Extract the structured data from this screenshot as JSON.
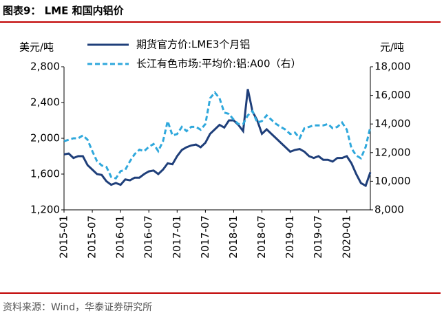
{
  "header": {
    "title": "图表9： LME 和国内铝价"
  },
  "footer": {
    "source": "资料来源：Wind，华泰证券研究所"
  },
  "chart_data": {
    "type": "line",
    "y_label": "美元/吨",
    "y2_label": "元/吨",
    "x": [
      "2015-01",
      "2015-02",
      "2015-03",
      "2015-04",
      "2015-05",
      "2015-06",
      "2015-07",
      "2015-08",
      "2015-09",
      "2015-10",
      "2015-11",
      "2015-12",
      "2016-01",
      "2016-02",
      "2016-03",
      "2016-04",
      "2016-05",
      "2016-06",
      "2016-07",
      "2016-08",
      "2016-09",
      "2016-10",
      "2016-11",
      "2016-12",
      "2017-01",
      "2017-02",
      "2017-03",
      "2017-04",
      "2017-05",
      "2017-06",
      "2017-07",
      "2017-08",
      "2017-09",
      "2017-10",
      "2017-11",
      "2017-12",
      "2018-01",
      "2018-02",
      "2018-03",
      "2018-04",
      "2018-05",
      "2018-06",
      "2018-07",
      "2018-08",
      "2018-09",
      "2018-10",
      "2018-11",
      "2018-12",
      "2019-01",
      "2019-02",
      "2019-03",
      "2019-04",
      "2019-05",
      "2019-06",
      "2019-07",
      "2019-08",
      "2019-09",
      "2019-10",
      "2019-11",
      "2019-12",
      "2020-01",
      "2020-02",
      "2020-03",
      "2020-04",
      "2020-05",
      "2020-06"
    ],
    "xticks": [
      "2015-01",
      "2015-07",
      "2016-01",
      "2016-07",
      "2017-01",
      "2017-07",
      "2018-01",
      "2018-07",
      "2019-01",
      "2019-07",
      "2020-01"
    ],
    "ylim": [
      1200,
      2800
    ],
    "yticks": [
      {
        "value": 1200,
        "label": "1,200"
      },
      {
        "value": 1600,
        "label": "1,600"
      },
      {
        "value": 2000,
        "label": "2,000"
      },
      {
        "value": 2400,
        "label": "2,400"
      },
      {
        "value": 2800,
        "label": "2,800"
      }
    ],
    "y2lim": [
      8000,
      18000
    ],
    "y2ticks": [
      {
        "value": 8000,
        "label": "8,000"
      },
      {
        "value": 10000,
        "label": "10,000"
      },
      {
        "value": 12000,
        "label": "12,000"
      },
      {
        "value": 14000,
        "label": "14,000"
      },
      {
        "value": 16000,
        "label": "16,000"
      },
      {
        "value": 18000,
        "label": "18,000"
      }
    ],
    "series": [
      {
        "name": "期货官方价:LME3个月铝",
        "color": "#1f3f7a",
        "line_style": "solid",
        "values": [
          1820,
          1830,
          1780,
          1800,
          1800,
          1700,
          1650,
          1600,
          1590,
          1520,
          1480,
          1500,
          1480,
          1540,
          1530,
          1560,
          1560,
          1600,
          1630,
          1640,
          1600,
          1650,
          1720,
          1710,
          1800,
          1870,
          1900,
          1920,
          1930,
          1900,
          1950,
          2050,
          2100,
          2150,
          2120,
          2200,
          2200,
          2150,
          2080,
          2550,
          2300,
          2200,
          2050,
          2100,
          2050,
          2000,
          1950,
          1900,
          1850,
          1870,
          1880,
          1850,
          1800,
          1780,
          1800,
          1760,
          1760,
          1740,
          1780,
          1780,
          1800,
          1720,
          1600,
          1500,
          1470,
          1620
        ]
      },
      {
        "name": "长江有色市场:平均价:铝:A00（右）",
        "color": "#2fa8dc",
        "line_style": "dashed",
        "axis": "y2",
        "values": [
          12800,
          12900,
          13000,
          13000,
          13200,
          12900,
          12100,
          11400,
          11100,
          11000,
          10300,
          10200,
          10700,
          10800,
          11400,
          11900,
          12200,
          12100,
          12400,
          12600,
          12100,
          12800,
          14200,
          13200,
          13300,
          13800,
          13500,
          13800,
          13800,
          13600,
          14000,
          15800,
          16200,
          15800,
          14800,
          14700,
          14300,
          14000,
          14000,
          14600,
          14900,
          14100,
          14200,
          14600,
          14300,
          14000,
          13800,
          13600,
          13300,
          13400,
          13000,
          13700,
          13800,
          13900,
          13900,
          13900,
          14000,
          13700,
          13800,
          14100,
          13600,
          12300,
          11800,
          11600,
          12400,
          13800
        ]
      }
    ]
  }
}
